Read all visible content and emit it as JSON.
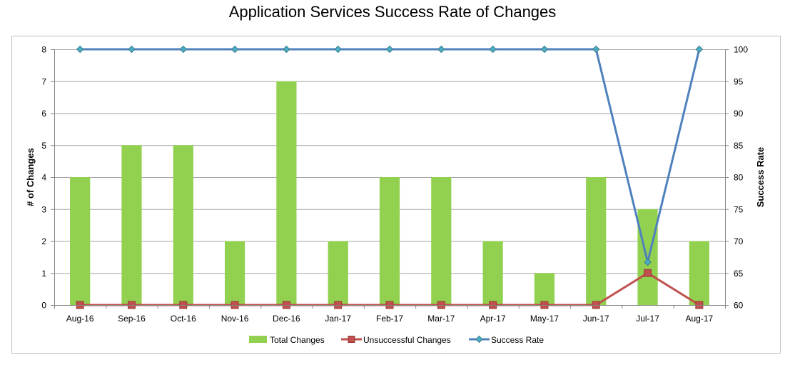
{
  "chart_data": {
    "type": "bar",
    "title": "Application Services Success Rate of Changes",
    "categories": [
      "Aug-16",
      "Sep-16",
      "Oct-16",
      "Nov-16",
      "Dec-16",
      "Jan-17",
      "Feb-17",
      "Mar-17",
      "Apr-17",
      "May-17",
      "Jun-17",
      "Jul-17",
      "Aug-17"
    ],
    "ylabel": "# of Changes",
    "ylim": [
      0,
      8
    ],
    "yticks": [
      "0",
      "1",
      "2",
      "3",
      "4",
      "5",
      "6",
      "7",
      "8"
    ],
    "y2label": "Success Rate",
    "y2lim": [
      60,
      100
    ],
    "y2ticks": [
      "60",
      "65",
      "70",
      "75",
      "80",
      "85",
      "90",
      "95",
      "100"
    ],
    "grid": true,
    "legend_position": "bottom",
    "series": [
      {
        "name": "Total Changes",
        "type": "bar",
        "axis": "left",
        "color": "#92D050",
        "values": [
          4,
          5,
          5,
          2,
          7,
          2,
          4,
          4,
          2,
          1,
          4,
          3,
          2
        ]
      },
      {
        "name": "Unsuccessful Changes",
        "type": "line",
        "axis": "left",
        "color": "#C0504D",
        "values": [
          0,
          0,
          0,
          0,
          0,
          0,
          0,
          0,
          0,
          0,
          0,
          1,
          0
        ]
      },
      {
        "name": "Success Rate",
        "type": "line",
        "axis": "right",
        "color": "#4F81BD",
        "values": [
          100,
          100,
          100,
          100,
          100,
          100,
          100,
          100,
          100,
          100,
          100,
          66.7,
          100
        ]
      }
    ]
  }
}
